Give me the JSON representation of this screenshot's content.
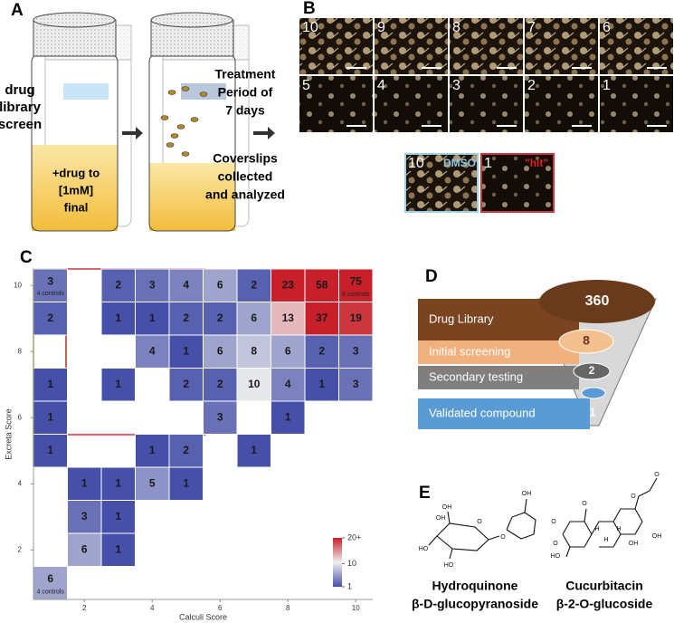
{
  "panel_labels": [
    "A",
    "B",
    "C",
    "D",
    "E"
  ],
  "panel_a": {
    "left_label": [
      "drug",
      "library",
      "screen"
    ],
    "vial_label": [
      "+drug to",
      "[1mM]",
      "final"
    ],
    "step_1": [
      "Treatment",
      "Period of",
      "7 days"
    ],
    "step_2": [
      "Coverslips",
      "collected",
      "and analyzed"
    ]
  },
  "panel_b": {
    "scores": [
      10,
      9,
      8,
      7,
      6,
      5,
      4,
      3,
      2,
      1
    ],
    "comparison": [
      {
        "score": 10,
        "label": "DMSO"
      },
      {
        "score": 1,
        "label": "\"hit\""
      }
    ]
  },
  "chart_data": {
    "type": "heatmap",
    "x_label": "Calculi Score",
    "y_label": "Excreta Score",
    "xlim": [
      0.5,
      10.5
    ],
    "ylim": [
      0.5,
      10.5
    ],
    "xticks": [
      2,
      4,
      6,
      8,
      10
    ],
    "yticks": [
      2,
      4,
      6,
      8,
      10
    ],
    "colorbar": {
      "clim": [
        1,
        20
      ],
      "ticks": [
        {
          "value": 20,
          "label": "20+"
        },
        10,
        1
      ],
      "colors": [
        "#4650a8",
        "#efefef",
        "#c8202a"
      ]
    },
    "cells": [
      {
        "x": 1,
        "y": 10,
        "value": 3,
        "note": "4 controls"
      },
      {
        "x": 3,
        "y": 10,
        "value": 2
      },
      {
        "x": 4,
        "y": 10,
        "value": 3
      },
      {
        "x": 5,
        "y": 10,
        "value": 4
      },
      {
        "x": 6,
        "y": 10,
        "value": 6
      },
      {
        "x": 7,
        "y": 10,
        "value": 2
      },
      {
        "x": 8,
        "y": 10,
        "value": 23
      },
      {
        "x": 9,
        "y": 10,
        "value": 58
      },
      {
        "x": 10,
        "y": 10,
        "value": 75,
        "note": "8 controls"
      },
      {
        "x": 1,
        "y": 9,
        "value": 2
      },
      {
        "x": 3,
        "y": 9,
        "value": 1
      },
      {
        "x": 4,
        "y": 9,
        "value": 1
      },
      {
        "x": 5,
        "y": 9,
        "value": 2
      },
      {
        "x": 6,
        "y": 9,
        "value": 2
      },
      {
        "x": 7,
        "y": 9,
        "value": 6
      },
      {
        "x": 8,
        "y": 9,
        "value": 13
      },
      {
        "x": 9,
        "y": 9,
        "value": 37
      },
      {
        "x": 10,
        "y": 9,
        "value": 19
      },
      {
        "x": 4,
        "y": 8,
        "value": 4
      },
      {
        "x": 5,
        "y": 8,
        "value": 1
      },
      {
        "x": 6,
        "y": 8,
        "value": 6
      },
      {
        "x": 7,
        "y": 8,
        "value": 8
      },
      {
        "x": 8,
        "y": 8,
        "value": 6
      },
      {
        "x": 9,
        "y": 8,
        "value": 2
      },
      {
        "x": 10,
        "y": 8,
        "value": 3
      },
      {
        "x": 1,
        "y": 7,
        "value": 1
      },
      {
        "x": 3,
        "y": 7,
        "value": 1
      },
      {
        "x": 5,
        "y": 7,
        "value": 2
      },
      {
        "x": 6,
        "y": 7,
        "value": 2
      },
      {
        "x": 7,
        "y": 7,
        "value": 10
      },
      {
        "x": 8,
        "y": 7,
        "value": 4
      },
      {
        "x": 9,
        "y": 7,
        "value": 1
      },
      {
        "x": 10,
        "y": 7,
        "value": 3
      },
      {
        "x": 1,
        "y": 6,
        "value": 1
      },
      {
        "x": 6,
        "y": 6,
        "value": 3
      },
      {
        "x": 8,
        "y": 6,
        "value": 1
      },
      {
        "x": 1,
        "y": 5,
        "value": 1
      },
      {
        "x": 4,
        "y": 5,
        "value": 1
      },
      {
        "x": 5,
        "y": 5,
        "value": 2
      },
      {
        "x": 7,
        "y": 5,
        "value": 1
      },
      {
        "x": 2,
        "y": 4,
        "value": 1
      },
      {
        "x": 3,
        "y": 4,
        "value": 1
      },
      {
        "x": 4,
        "y": 4,
        "value": 5
      },
      {
        "x": 5,
        "y": 4,
        "value": 1
      },
      {
        "x": 2,
        "y": 3,
        "value": 3
      },
      {
        "x": 3,
        "y": 3,
        "value": 1
      },
      {
        "x": 2,
        "y": 2,
        "value": 6
      },
      {
        "x": 3,
        "y": 2,
        "value": 1
      },
      {
        "x": 1,
        "y": 1,
        "value": 6,
        "note": "4 controls"
      }
    ]
  },
  "panel_d": {
    "stages": [
      {
        "label": "Drug Library",
        "count": 360
      },
      {
        "label": "Initial screening",
        "count": 8
      },
      {
        "label": "Secondary testing",
        "count": 2
      },
      {
        "label": "Validated compound",
        "count": 1
      }
    ]
  },
  "panel_e": {
    "compounds": [
      {
        "name": [
          "Hydroquinone",
          "β-D-glucopyranoside"
        ],
        "atoms": [
          "OH",
          "OH",
          "HO",
          "HO",
          "OH",
          "O",
          "O"
        ]
      },
      {
        "name": [
          "Cucurbitacin",
          "β-2-O-glucoside"
        ],
        "atoms": [
          "O",
          "O",
          "O",
          "O",
          "OH",
          "HO",
          "O",
          "H",
          "H",
          "H",
          "OH"
        ]
      }
    ]
  }
}
